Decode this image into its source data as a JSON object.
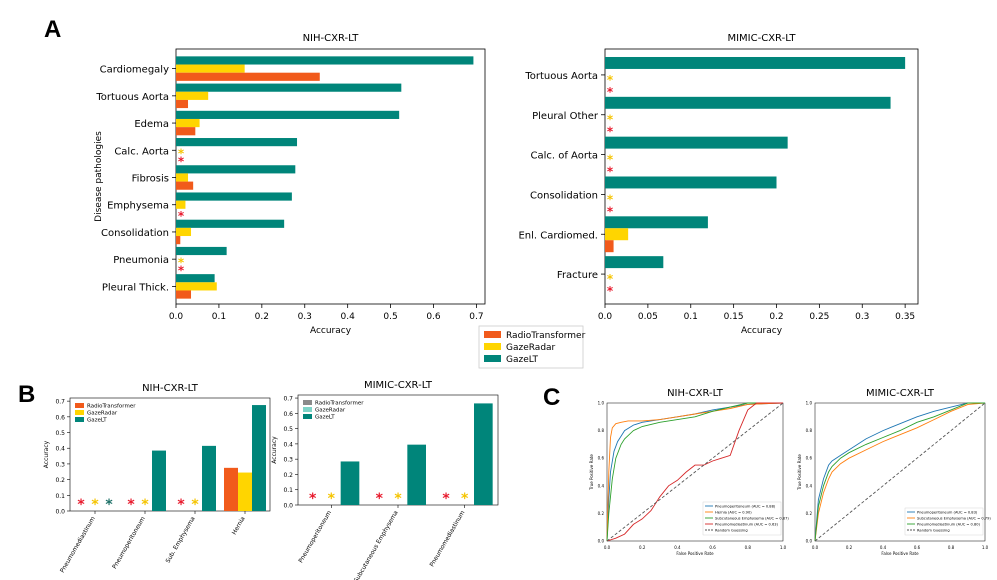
{
  "panels": {
    "A": "A",
    "B": "B",
    "C": "C"
  },
  "colors": {
    "radio": "#f15a1b",
    "gaze_radar": "#ffd500",
    "gaze_lt": "#00857a",
    "star_red": "#e8192c",
    "star_yellow": "#f5c400",
    "star_teal": "#1b6f66",
    "grey": "#8a8a8a",
    "light_teal": "#7fd4c8"
  },
  "legend": {
    "items": [
      {
        "label": "RadioTransformer",
        "color": "#f15a1b"
      },
      {
        "label": "GazeRadar",
        "color": "#ffd500"
      },
      {
        "label": "GazeLT",
        "color": "#00857a"
      }
    ]
  },
  "chart_data": [
    {
      "id": "A_nih",
      "type": "bar",
      "orientation": "horizontal",
      "title": "NIH-CXR-LT",
      "xlabel": "Accuracy",
      "ylabel": "Disease pathologies",
      "xlim": [
        0,
        0.72
      ],
      "xticks": [
        0.0,
        0.1,
        0.2,
        0.3,
        0.4,
        0.5,
        0.6,
        0.7
      ],
      "categories": [
        "Cardiomegaly",
        "Tortuous Aorta",
        "Edema",
        "Calc. Aorta",
        "Fibrosis",
        "Emphysema",
        "Consolidation",
        "Pneumonia",
        "Pleural Thick."
      ],
      "series": [
        {
          "name": "RadioTransformer",
          "values": [
            0.335,
            0.028,
            0.045,
            0,
            0.04,
            0,
            0.01,
            0,
            0.035
          ]
        },
        {
          "name": "GazeRadar",
          "values": [
            0.16,
            0.075,
            0.055,
            0,
            0.028,
            0.022,
            0.035,
            0,
            0.095
          ]
        },
        {
          "name": "GazeLT",
          "values": [
            0.693,
            0.525,
            0.52,
            0.282,
            0.278,
            0.27,
            0.252,
            0.118,
            0.09
          ]
        }
      ],
      "zero_markers": [
        {
          "category": "Calc. Aorta",
          "series": "GazeRadar",
          "symbol": "*"
        },
        {
          "category": "Calc. Aorta",
          "series": "RadioTransformer",
          "symbol": "*"
        },
        {
          "category": "Emphysema",
          "series": "RadioTransformer",
          "symbol": "*"
        },
        {
          "category": "Pneumonia",
          "series": "GazeRadar",
          "symbol": "*"
        },
        {
          "category": "Pneumonia",
          "series": "RadioTransformer",
          "symbol": "*"
        }
      ]
    },
    {
      "id": "A_mimic",
      "type": "bar",
      "orientation": "horizontal",
      "title": "MIMIC-CXR-LT",
      "xlabel": "Accuracy",
      "ylabel": "",
      "xlim": [
        0,
        0.365
      ],
      "xticks": [
        0.0,
        0.05,
        0.1,
        0.15,
        0.2,
        0.25,
        0.3,
        0.35
      ],
      "categories": [
        "Tortuous Aorta",
        "Pleural Other",
        "Calc. of Aorta",
        "Consolidation",
        "Enl. Cardiomed.",
        "Fracture"
      ],
      "series": [
        {
          "name": "RadioTransformer",
          "values": [
            0,
            0,
            0,
            0,
            0.01,
            0
          ]
        },
        {
          "name": "GazeRadar",
          "values": [
            0,
            0,
            0,
            0,
            0.027,
            0
          ]
        },
        {
          "name": "GazeLT",
          "values": [
            0.35,
            0.333,
            0.213,
            0.2,
            0.12,
            0.068
          ]
        }
      ],
      "zero_markers": [
        {
          "category": "Tortuous Aorta",
          "series": "GazeRadar",
          "symbol": "*"
        },
        {
          "category": "Tortuous Aorta",
          "series": "RadioTransformer",
          "symbol": "*"
        },
        {
          "category": "Pleural Other",
          "series": "GazeRadar",
          "symbol": "*"
        },
        {
          "category": "Pleural Other",
          "series": "RadioTransformer",
          "symbol": "*"
        },
        {
          "category": "Calc. of Aorta",
          "series": "GazeRadar",
          "symbol": "*"
        },
        {
          "category": "Calc. of Aorta",
          "series": "RadioTransformer",
          "symbol": "*"
        },
        {
          "category": "Consolidation",
          "series": "GazeRadar",
          "symbol": "*"
        },
        {
          "category": "Consolidation",
          "series": "RadioTransformer",
          "symbol": "*"
        },
        {
          "category": "Fracture",
          "series": "GazeRadar",
          "symbol": "*"
        },
        {
          "category": "Fracture",
          "series": "RadioTransformer",
          "symbol": "*"
        }
      ]
    },
    {
      "id": "B_nih",
      "type": "bar",
      "orientation": "vertical",
      "title": "NIH-CXR-LT",
      "xlabel": "",
      "ylabel": "Accuracy",
      "ylim": [
        0,
        0.72
      ],
      "yticks": [
        0.0,
        0.1,
        0.2,
        0.3,
        0.4,
        0.5,
        0.6,
        0.7
      ],
      "categories": [
        "Pneumomediastinum",
        "Pneumoperitoneum",
        "Sub. Emphysema",
        "Hernia"
      ],
      "legend": [
        "RadioTransformer",
        "GazeRadar",
        "GazeLT"
      ],
      "series": [
        {
          "name": "RadioTransformer",
          "values": [
            0,
            0,
            0,
            0.275
          ]
        },
        {
          "name": "GazeRadar",
          "values": [
            0,
            0,
            0,
            0.245
          ]
        },
        {
          "name": "GazeLT",
          "values": [
            0,
            0.385,
            0.415,
            0.675
          ]
        }
      ],
      "zero_markers": [
        {
          "category": "Pneumomediastinum",
          "series": "RadioTransformer",
          "color": "red"
        },
        {
          "category": "Pneumomediastinum",
          "series": "GazeRadar",
          "color": "yellow"
        },
        {
          "category": "Pneumomediastinum",
          "series": "GazeLT",
          "color": "teal"
        },
        {
          "category": "Pneumoperitoneum",
          "series": "RadioTransformer",
          "color": "red"
        },
        {
          "category": "Pneumoperitoneum",
          "series": "GazeRadar",
          "color": "yellow"
        },
        {
          "category": "Sub. Emphysema",
          "series": "RadioTransformer",
          "color": "red"
        },
        {
          "category": "Sub. Emphysema",
          "series": "GazeRadar",
          "color": "yellow"
        }
      ]
    },
    {
      "id": "B_mimic",
      "type": "bar",
      "orientation": "vertical",
      "title": "MIMIC-CXR-LT",
      "xlabel": "",
      "ylabel": "Accuracy",
      "ylim": [
        0,
        0.72
      ],
      "yticks": [
        0.0,
        0.1,
        0.2,
        0.3,
        0.4,
        0.5,
        0.6,
        0.7
      ],
      "categories": [
        "Pneumoperitoneum",
        "Subcutaneous Emphysema",
        "Pneumomediastinum"
      ],
      "legend": [
        "RadioTransformer",
        "GazeRadar",
        "GazeLT"
      ],
      "series": [
        {
          "name": "RadioTransformer",
          "values": [
            0,
            0,
            0
          ]
        },
        {
          "name": "GazeRadar",
          "values": [
            0,
            0,
            0
          ]
        },
        {
          "name": "GazeLT",
          "values": [
            0.285,
            0.395,
            0.665
          ]
        }
      ],
      "zero_markers": [
        {
          "category": "Pneumoperitoneum",
          "series": "RadioTransformer",
          "color": "red"
        },
        {
          "category": "Pneumoperitoneum",
          "series": "GazeRadar",
          "color": "yellow"
        },
        {
          "category": "Subcutaneous Emphysema",
          "series": "RadioTransformer",
          "color": "red"
        },
        {
          "category": "Subcutaneous Emphysema",
          "series": "GazeRadar",
          "color": "yellow"
        },
        {
          "category": "Pneumomediastinum",
          "series": "RadioTransformer",
          "color": "red"
        },
        {
          "category": "Pneumomediastinum",
          "series": "GazeRadar",
          "color": "yellow"
        }
      ]
    },
    {
      "id": "C_nih",
      "type": "line",
      "title": "NIH-CXR-LT",
      "xlabel": "False Positive Rate",
      "ylabel": "True Positive Rate",
      "xlim": [
        0,
        1
      ],
      "ylim": [
        0,
        1
      ],
      "ticks": [
        0.0,
        0.2,
        0.4,
        0.6,
        0.8,
        1.0
      ],
      "series": [
        {
          "name": "Pneumoperitoneum (AUC = 0.88)",
          "color": "#1f77b4",
          "x": [
            0,
            0.01,
            0.02,
            0.04,
            0.06,
            0.08,
            0.1,
            0.15,
            0.2,
            0.3,
            0.4,
            0.5,
            0.6,
            0.7,
            0.8,
            1.0
          ],
          "y": [
            0,
            0.3,
            0.5,
            0.65,
            0.72,
            0.76,
            0.8,
            0.84,
            0.86,
            0.88,
            0.9,
            0.92,
            0.95,
            0.97,
            0.99,
            1.0
          ]
        },
        {
          "name": "Hernia (AUC = 0.90)",
          "color": "#ff7f0e",
          "x": [
            0,
            0.01,
            0.02,
            0.03,
            0.05,
            0.08,
            0.12,
            0.2,
            0.3,
            0.4,
            0.5,
            0.6,
            0.7,
            0.8,
            1.0
          ],
          "y": [
            0,
            0.5,
            0.75,
            0.82,
            0.85,
            0.86,
            0.87,
            0.87,
            0.88,
            0.9,
            0.92,
            0.94,
            0.96,
            0.99,
            1.0
          ]
        },
        {
          "name": "Subcutaneous Emphysema (AUC = 0.87)",
          "color": "#2ca02c",
          "x": [
            0,
            0.01,
            0.03,
            0.05,
            0.08,
            0.1,
            0.15,
            0.2,
            0.3,
            0.4,
            0.5,
            0.6,
            0.7,
            0.8,
            1.0
          ],
          "y": [
            0,
            0.2,
            0.45,
            0.6,
            0.7,
            0.74,
            0.8,
            0.83,
            0.86,
            0.88,
            0.9,
            0.94,
            0.97,
            1.0,
            1.0
          ]
        },
        {
          "name": "Pneumomediastinum (AUC = 0.63)",
          "color": "#d62728",
          "x": [
            0,
            0.05,
            0.1,
            0.15,
            0.2,
            0.25,
            0.3,
            0.35,
            0.4,
            0.45,
            0.5,
            0.55,
            0.6,
            0.65,
            0.7,
            0.75,
            0.8,
            0.85,
            0.9,
            1.0
          ],
          "y": [
            0,
            0.02,
            0.05,
            0.12,
            0.16,
            0.22,
            0.32,
            0.4,
            0.44,
            0.5,
            0.55,
            0.55,
            0.58,
            0.6,
            0.62,
            0.8,
            0.95,
            1.0,
            1.0,
            1.0
          ]
        },
        {
          "name": "Random Guessing",
          "color": "#555555",
          "dashed": true,
          "x": [
            0,
            1
          ],
          "y": [
            0,
            1
          ]
        }
      ]
    },
    {
      "id": "C_mimic",
      "type": "line",
      "title": "MIMIC-CXR-LT",
      "xlabel": "False Positive Rate",
      "ylabel": "True Positive Rate",
      "xlim": [
        0,
        1
      ],
      "ylim": [
        0,
        1
      ],
      "ticks": [
        0.0,
        0.2,
        0.4,
        0.6,
        0.8,
        1.0
      ],
      "series": [
        {
          "name": "Pneumoperitoneum (AUC = 0.83)",
          "color": "#1f77b4",
          "x": [
            0,
            0.02,
            0.05,
            0.08,
            0.1,
            0.15,
            0.2,
            0.25,
            0.3,
            0.4,
            0.5,
            0.6,
            0.7,
            0.8,
            0.9,
            1.0
          ],
          "y": [
            0,
            0.3,
            0.45,
            0.55,
            0.58,
            0.62,
            0.66,
            0.7,
            0.74,
            0.8,
            0.85,
            0.9,
            0.94,
            0.97,
            1.0,
            1.0
          ]
        },
        {
          "name": "Subcutaneous Emphysema (AUC = 0.79)",
          "color": "#ff7f0e",
          "x": [
            0,
            0.02,
            0.05,
            0.08,
            0.1,
            0.15,
            0.2,
            0.3,
            0.4,
            0.5,
            0.6,
            0.7,
            0.8,
            0.9,
            1.0
          ],
          "y": [
            0,
            0.2,
            0.35,
            0.45,
            0.5,
            0.56,
            0.6,
            0.66,
            0.72,
            0.77,
            0.82,
            0.88,
            0.94,
            0.99,
            1.0
          ]
        },
        {
          "name": "Pneumomediastinum (AUC = 0.80)",
          "color": "#2ca02c",
          "x": [
            0,
            0.02,
            0.05,
            0.08,
            0.1,
            0.15,
            0.2,
            0.3,
            0.4,
            0.5,
            0.6,
            0.7,
            0.8,
            0.9,
            1.0
          ],
          "y": [
            0,
            0.25,
            0.4,
            0.5,
            0.54,
            0.6,
            0.64,
            0.7,
            0.75,
            0.8,
            0.86,
            0.9,
            0.95,
            1.0,
            1.0
          ]
        },
        {
          "name": "Random Guessing",
          "color": "#555555",
          "dashed": true,
          "x": [
            0,
            1
          ],
          "y": [
            0,
            1
          ]
        }
      ]
    }
  ]
}
